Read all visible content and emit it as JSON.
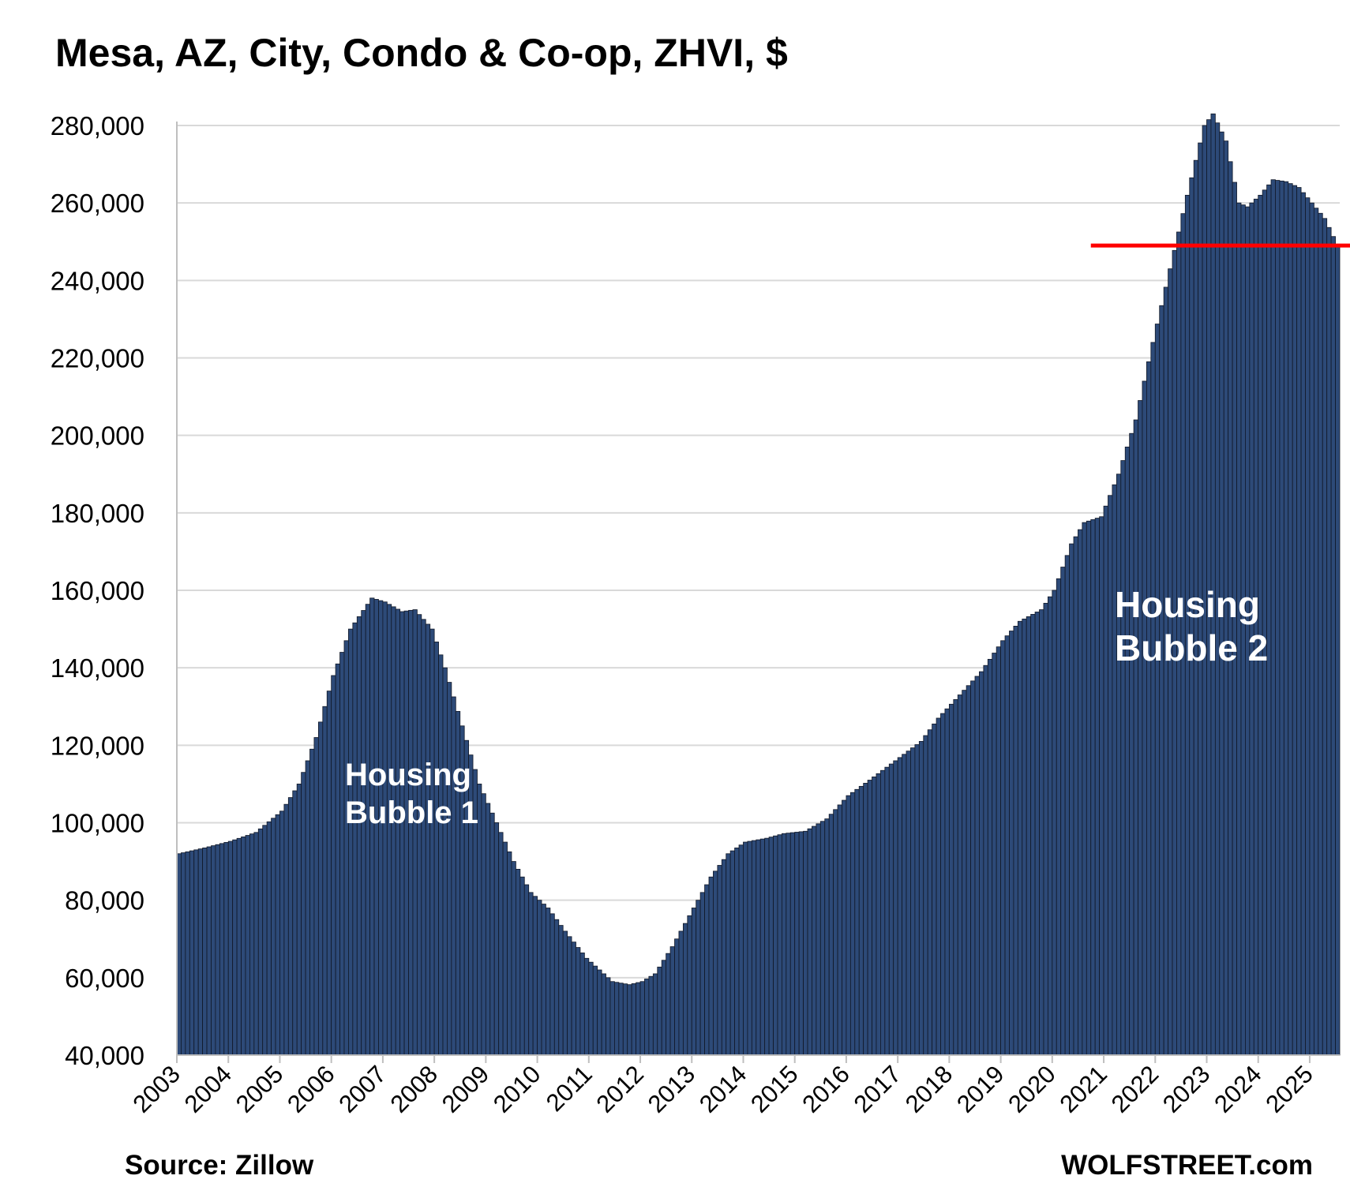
{
  "title": "Mesa, AZ, City, Condo & Co-op, ZHVI, $",
  "source": "Source: Zillow",
  "brand": "WOLFSTREET.com",
  "annotations": {
    "bubble1": {
      "line1": "Housing",
      "line2": "Bubble 1"
    },
    "bubble2": {
      "line1": "Housing",
      "line2": "Bubble 2"
    }
  },
  "colors": {
    "bar_fill": "#2d4a78",
    "bar_edge": "#111827",
    "reference_line": "#ff0000",
    "gridline": "#d9d9d9"
  },
  "chart_data": {
    "type": "bar",
    "title": "Mesa, AZ, City, Condo & Co-op, ZHVI, $",
    "xlabel": "",
    "ylabel": "",
    "ylim": [
      40000,
      280000
    ],
    "yticks": [
      40000,
      60000,
      80000,
      100000,
      120000,
      140000,
      160000,
      180000,
      200000,
      220000,
      240000,
      260000,
      280000
    ],
    "ytick_labels": [
      "40,000",
      "60,000",
      "80,000",
      "100,000",
      "120,000",
      "140,000",
      "160,000",
      "180,000",
      "200,000",
      "220,000",
      "240,000",
      "260,000",
      "280,000"
    ],
    "xtick_labels": [
      "2003",
      "2004",
      "2005",
      "2006",
      "2007",
      "2008",
      "2009",
      "2010",
      "2011",
      "2012",
      "2013",
      "2014",
      "2015",
      "2016",
      "2017",
      "2018",
      "2019",
      "2020",
      "2021",
      "2022",
      "2023",
      "2024",
      "2025"
    ],
    "grid": true,
    "legend": "none",
    "frequency": "monthly",
    "start": "2003-01",
    "end": "2025-07",
    "anchors": [
      [
        "2003-01",
        92000
      ],
      [
        "2003-07",
        93500
      ],
      [
        "2004-01",
        95200
      ],
      [
        "2004-07",
        97500
      ],
      [
        "2005-01",
        103000
      ],
      [
        "2005-05",
        110000
      ],
      [
        "2005-09",
        122000
      ],
      [
        "2006-01",
        138000
      ],
      [
        "2006-05",
        150000
      ],
      [
        "2006-10",
        158000
      ],
      [
        "2007-01",
        157000
      ],
      [
        "2007-05",
        154500
      ],
      [
        "2007-08",
        155000
      ],
      [
        "2007-12",
        150000
      ],
      [
        "2008-03",
        140000
      ],
      [
        "2008-07",
        125000
      ],
      [
        "2008-11",
        110000
      ],
      [
        "2009-03",
        100000
      ],
      [
        "2009-07",
        90000
      ],
      [
        "2009-11",
        82000
      ],
      [
        "2010-03",
        78000
      ],
      [
        "2010-07",
        72000
      ],
      [
        "2010-12",
        65000
      ],
      [
        "2011-06",
        59000
      ],
      [
        "2011-10",
        58200
      ],
      [
        "2012-01",
        59000
      ],
      [
        "2012-04",
        61000
      ],
      [
        "2012-08",
        68000
      ],
      [
        "2012-12",
        76000
      ],
      [
        "2013-05",
        86000
      ],
      [
        "2013-09",
        92000
      ],
      [
        "2014-01",
        95000
      ],
      [
        "2014-06",
        96000
      ],
      [
        "2014-10",
        97200
      ],
      [
        "2015-03",
        97800
      ],
      [
        "2015-08",
        101000
      ],
      [
        "2016-01",
        107000
      ],
      [
        "2016-06",
        111000
      ],
      [
        "2016-12",
        116000
      ],
      [
        "2017-06",
        121000
      ],
      [
        "2017-10",
        127000
      ],
      [
        "2018-03",
        133000
      ],
      [
        "2018-08",
        139000
      ],
      [
        "2019-01",
        147000
      ],
      [
        "2019-05",
        152000
      ],
      [
        "2019-10",
        155000
      ],
      [
        "2020-01",
        160000
      ],
      [
        "2020-05",
        172000
      ],
      [
        "2020-08",
        177500
      ],
      [
        "2020-12",
        179000
      ],
      [
        "2021-04",
        190000
      ],
      [
        "2021-08",
        204000
      ],
      [
        "2021-12",
        224000
      ],
      [
        "2022-04",
        243000
      ],
      [
        "2022-08",
        262000
      ],
      [
        "2022-12",
        280000
      ],
      [
        "2023-02",
        283000
      ],
      [
        "2023-05",
        276000
      ],
      [
        "2023-08",
        260000
      ],
      [
        "2023-10",
        259000
      ],
      [
        "2024-01",
        262000
      ],
      [
        "2024-04",
        266000
      ],
      [
        "2024-07",
        265500
      ],
      [
        "2024-10",
        264000
      ],
      [
        "2025-01",
        260000
      ],
      [
        "2025-04",
        256000
      ],
      [
        "2025-07",
        249000
      ]
    ],
    "reference_line": {
      "y": 249000,
      "from": "2020-10"
    }
  }
}
